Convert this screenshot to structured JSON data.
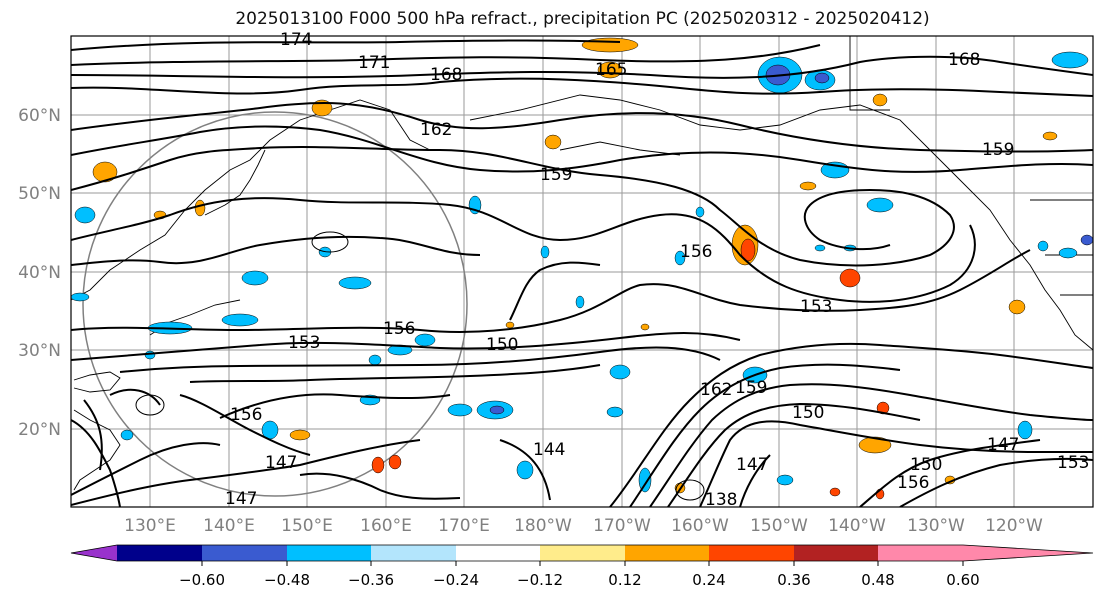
{
  "title": "2025013100 F000 500 hPa refract., precipitation PC (2025020312 - 2025020412)",
  "map": {
    "lat_labels": [
      "60°N",
      "50°N",
      "40°N",
      "30°N",
      "20°N"
    ],
    "lon_labels": [
      "130°E",
      "140°E",
      "150°E",
      "160°E",
      "170°E",
      "180°W",
      "170°W",
      "160°W",
      "150°W",
      "140°W",
      "130°W",
      "120°W"
    ],
    "contour_labels": [
      "174",
      "171",
      "168",
      "165",
      "168",
      "162",
      "159",
      "159",
      "156",
      "153",
      "156",
      "153",
      "150",
      "150",
      "147",
      "147",
      "147",
      "150",
      "153",
      "144",
      "138",
      "162",
      "159",
      "147",
      "156",
      "156"
    ]
  },
  "colorbar": {
    "colors": [
      "#9932cc",
      "#00008b",
      "#3a5bd0",
      "#00bfff",
      "#b3e5fc",
      "#ffffff",
      "#ffec8b",
      "#ffa500",
      "#ff4500",
      "#b22222",
      "#ff88aa"
    ],
    "tick_labels": [
      "−0.60",
      "−0.48",
      "−0.36",
      "−0.24",
      "−0.12",
      "0.12",
      "0.24",
      "0.36",
      "0.48",
      "0.60"
    ]
  }
}
